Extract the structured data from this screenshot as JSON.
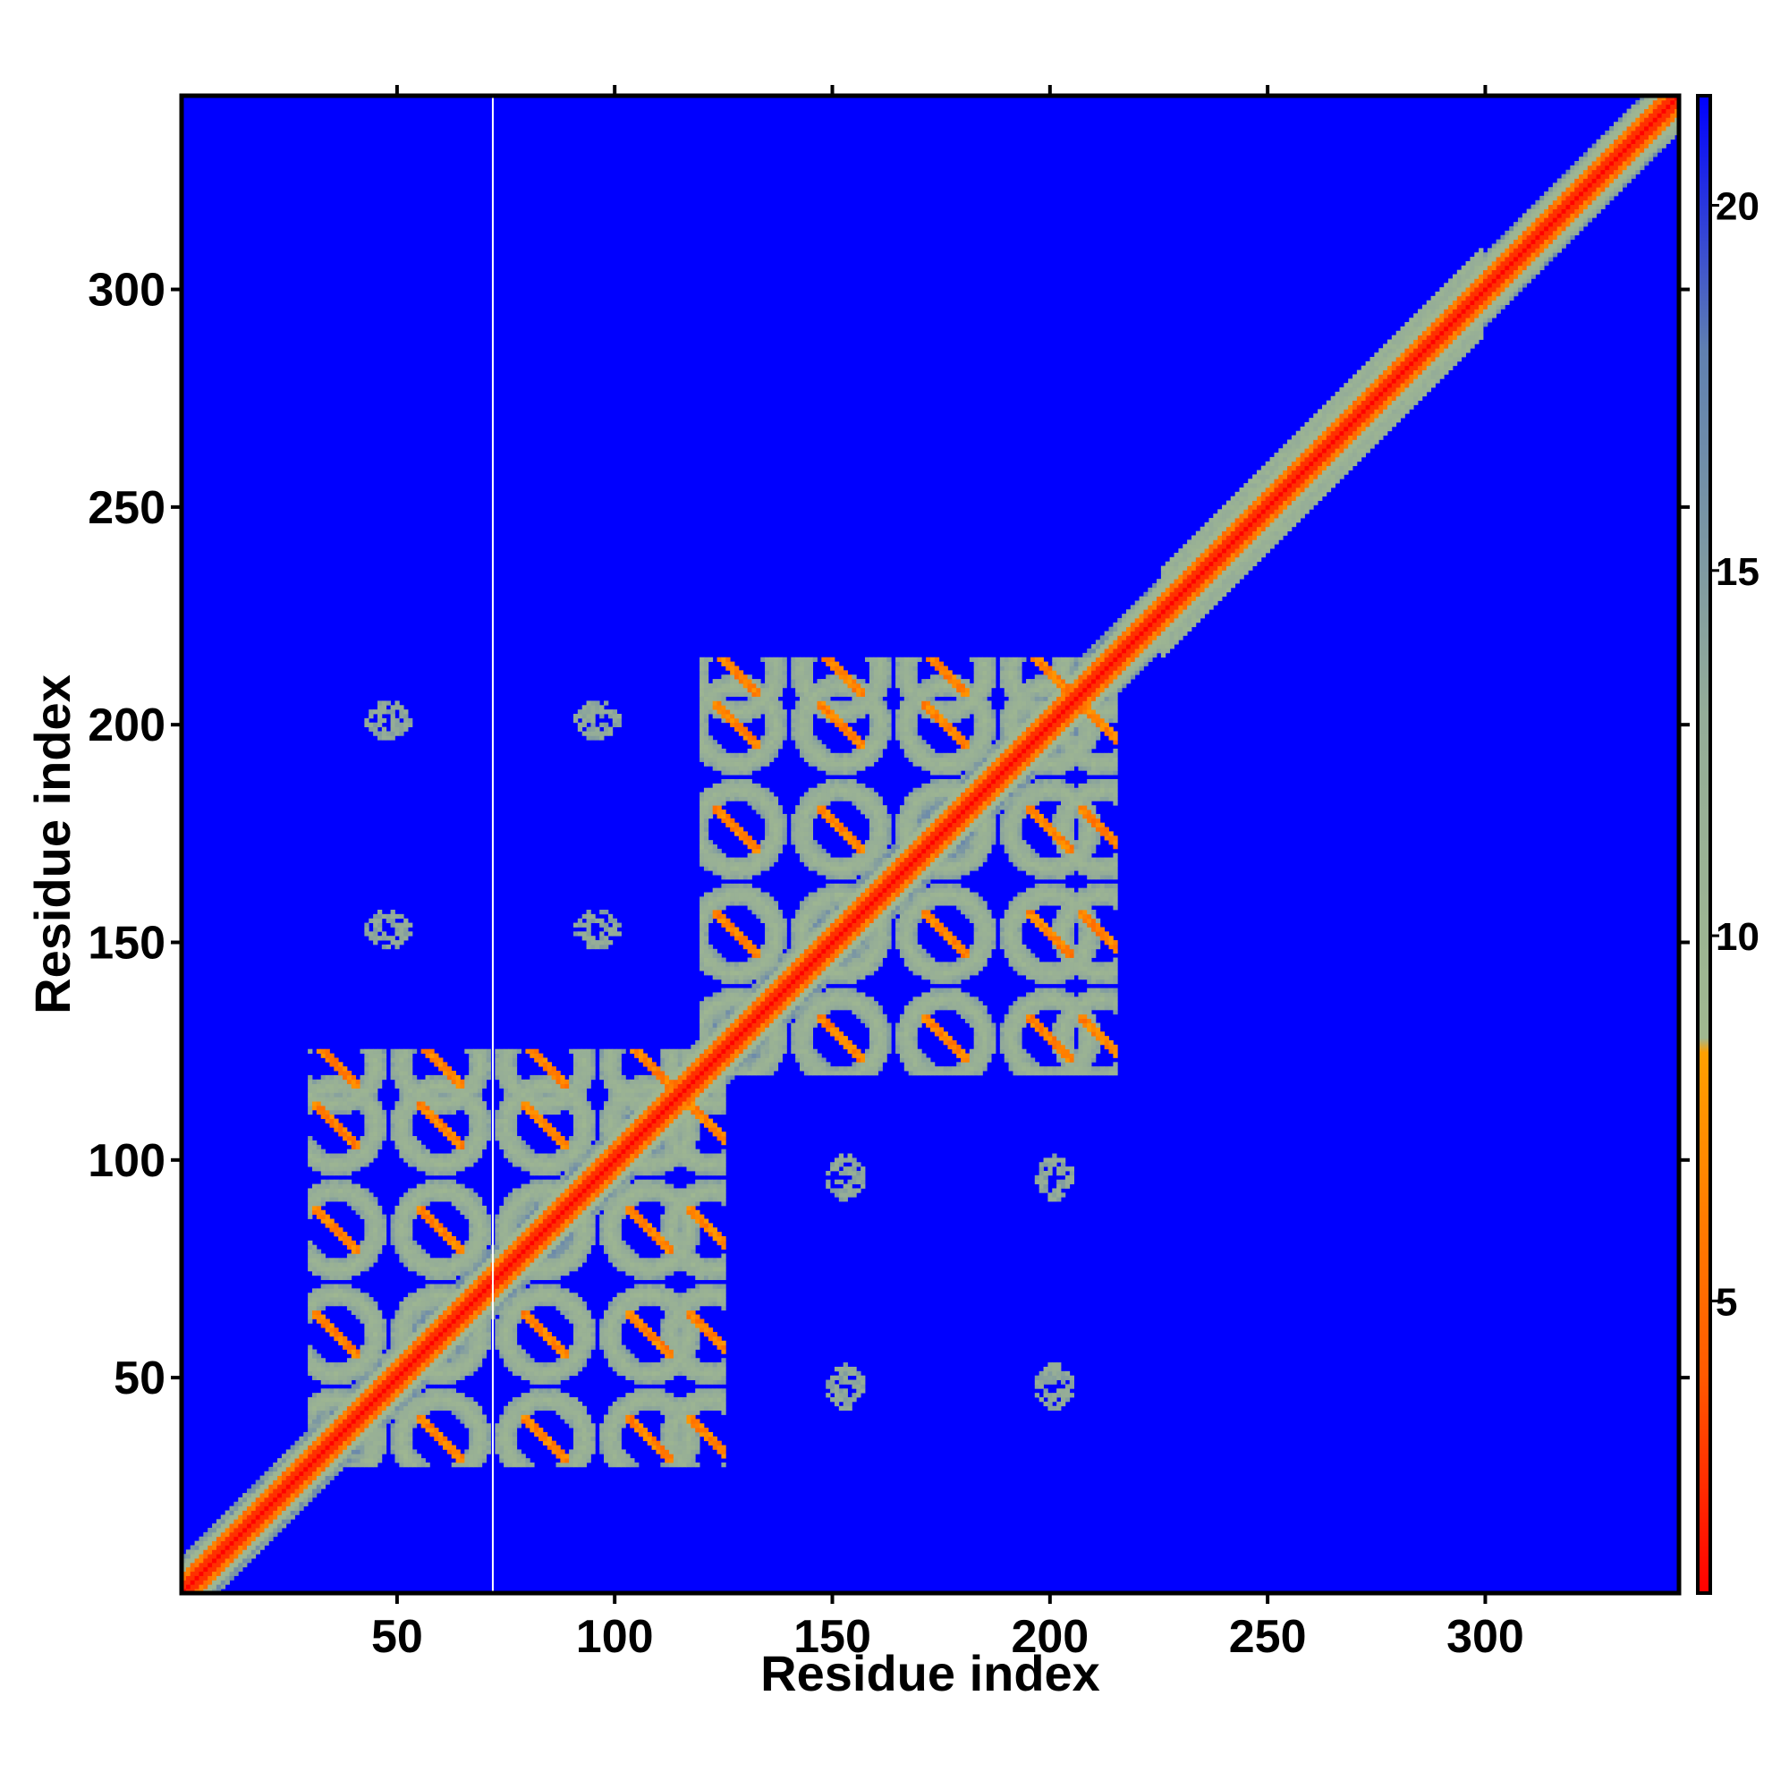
{
  "chart_data": {
    "type": "heatmap",
    "title": "",
    "xlabel": "Residue index",
    "ylabel": "Residue index",
    "xlim": [
      1,
      344
    ],
    "ylim": [
      1,
      344
    ],
    "x_ticks": [
      50,
      100,
      150,
      200,
      250,
      300
    ],
    "x_tick_labels": [
      "50",
      "100",
      "150",
      "200",
      "250",
      "300"
    ],
    "y_ticks": [
      50,
      100,
      150,
      200,
      250,
      300
    ],
    "y_tick_labels": [
      "50",
      "100",
      "150",
      "200",
      "250",
      "300"
    ],
    "grid": false,
    "matrix": "symmetric residue-residue distance map",
    "colorbar": {
      "position": "right",
      "range": [
        1,
        21.5
      ],
      "ticks": [
        5,
        10,
        15,
        20
      ],
      "tick_labels": [
        "5",
        "10",
        "15",
        "20"
      ],
      "colors": [
        {
          "value": 1,
          "color": "#ff0000"
        },
        {
          "value": 4,
          "color": "#ff5a00"
        },
        {
          "value": 8.4,
          "color": "#ffa000"
        },
        {
          "value": 8.6,
          "color": "#a0b890"
        },
        {
          "value": 13,
          "color": "#94ac98"
        },
        {
          "value": 18,
          "color": "#6080b0"
        },
        {
          "value": 21.5,
          "color": "#0000ff"
        }
      ]
    },
    "background_color": "#0000ff",
    "main_diagonal": {
      "from": 1,
      "to": 344
    },
    "domains": [
      {
        "name": "",
        "start": 30,
        "end": 125,
        "lattice_centers": [
          36,
          60,
          84,
          108,
          122
        ]
      },
      {
        "name": "",
        "start": 120,
        "end": 215,
        "lattice_centers": [
          128,
          152,
          176,
          200,
          212
        ]
      }
    ],
    "off_domain_contacts": [
      {
        "x": 47,
        "y": 201
      },
      {
        "x": 95,
        "y": 201
      },
      {
        "x": 47,
        "y": 153
      },
      {
        "x": 95,
        "y": 153
      },
      {
        "x": 153,
        "y": 97
      },
      {
        "x": 201,
        "y": 97
      },
      {
        "x": 153,
        "y": 49
      },
      {
        "x": 201,
        "y": 49
      }
    ],
    "vertical_line_at": 72
  }
}
